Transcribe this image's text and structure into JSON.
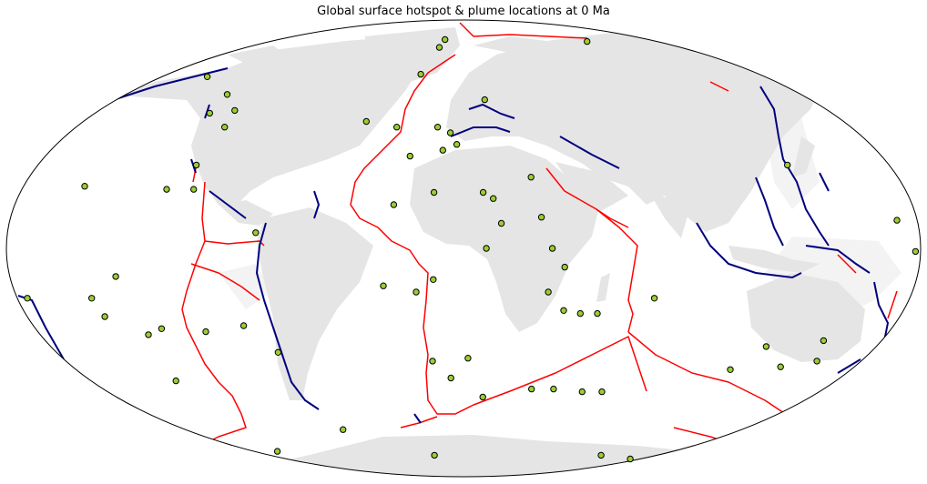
{
  "title": "Global surface hotspot & plume locations at 0 Ma",
  "colors": {
    "land": "#e5e5e5",
    "shelf": "#f3f3f3",
    "ridge": "#ff0000",
    "subduction": "#00007f",
    "hotspot_fill": "#9acd32",
    "hotspot_edge": "#000000",
    "outline": "#000000"
  },
  "legend": "none",
  "projection": "mollweide",
  "hotspots": [
    {
      "lon": -153,
      "lat": 59
    },
    {
      "lon": -126,
      "lat": 52
    },
    {
      "lon": -124,
      "lat": 45
    },
    {
      "lon": -113,
      "lat": 46
    },
    {
      "lon": -111,
      "lat": 40
    },
    {
      "lon": -113,
      "lat": 27
    },
    {
      "lon": -110,
      "lat": 19
    },
    {
      "lon": -121,
      "lat": 19
    },
    {
      "lon": -155,
      "lat": 20
    },
    {
      "lon": -82,
      "lat": 5
    },
    {
      "lon": -138,
      "lat": -9
    },
    {
      "lon": -176,
      "lat": -16
    },
    {
      "lon": -150,
      "lat": -16
    },
    {
      "lon": -148,
      "lat": -22
    },
    {
      "lon": -134,
      "lat": -28
    },
    {
      "lon": -127,
      "lat": -26
    },
    {
      "lon": -109,
      "lat": -27
    },
    {
      "lon": -92,
      "lat": -25
    },
    {
      "lon": -82,
      "lat": -34
    },
    {
      "lon": -139,
      "lat": -44
    },
    {
      "lon": -78,
      "lat": -63
    },
    {
      "lon": -32,
      "lat": -12
    },
    {
      "lon": -19,
      "lat": -14
    },
    {
      "lon": -12,
      "lat": -10
    },
    {
      "lon": -14,
      "lat": -37
    },
    {
      "lon": -6,
      "lat": -43
    },
    {
      "lon": 2,
      "lat": -36
    },
    {
      "lon": 10,
      "lat": -50
    },
    {
      "lon": -18,
      "lat": 76
    },
    {
      "lon": -20,
      "lat": 72
    },
    {
      "lon": -26,
      "lat": 60
    },
    {
      "lon": 11,
      "lat": 50
    },
    {
      "lon": -46,
      "lat": 42
    },
    {
      "lon": -31,
      "lat": 40
    },
    {
      "lon": -12,
      "lat": 40
    },
    {
      "lon": -6,
      "lat": 38
    },
    {
      "lon": -3,
      "lat": 34
    },
    {
      "lon": -23,
      "lat": 30
    },
    {
      "lon": -9,
      "lat": 32
    },
    {
      "lon": -28,
      "lat": 14
    },
    {
      "lon": -12,
      "lat": 18
    },
    {
      "lon": 8,
      "lat": 18
    },
    {
      "lon": 12,
      "lat": 16
    },
    {
      "lon": 15,
      "lat": 8
    },
    {
      "lon": 28,
      "lat": 23
    },
    {
      "lon": 31,
      "lat": 10
    },
    {
      "lon": 9,
      "lat": 0
    },
    {
      "lon": 35,
      "lat": 0
    },
    {
      "lon": 40,
      "lat": -6
    },
    {
      "lon": 34,
      "lat": -14
    },
    {
      "lon": 41,
      "lat": -20
    },
    {
      "lon": 48,
      "lat": -21
    },
    {
      "lon": 55,
      "lat": -21
    },
    {
      "lon": 77,
      "lat": -16
    },
    {
      "lon": 115,
      "lat": 75
    },
    {
      "lon": 137,
      "lat": 27
    },
    {
      "lon": 172,
      "lat": 9
    },
    {
      "lon": 178,
      "lat": -1
    },
    {
      "lon": 155,
      "lat": -30
    },
    {
      "lon": 132,
      "lat": -32
    },
    {
      "lon": 124,
      "lat": -40
    },
    {
      "lon": 146,
      "lat": -39
    },
    {
      "lon": 160,
      "lat": -37
    },
    {
      "lon": 34,
      "lat": -47
    },
    {
      "lon": 45,
      "lat": -47
    },
    {
      "lon": 60,
      "lat": -48
    },
    {
      "lon": 70,
      "lat": -48
    },
    {
      "lon": 170,
      "lat": -77
    },
    {
      "lon": -160,
      "lat": -73
    },
    {
      "lon": -27,
      "lat": -75
    },
    {
      "lon": 128,
      "lat": -75
    }
  ]
}
